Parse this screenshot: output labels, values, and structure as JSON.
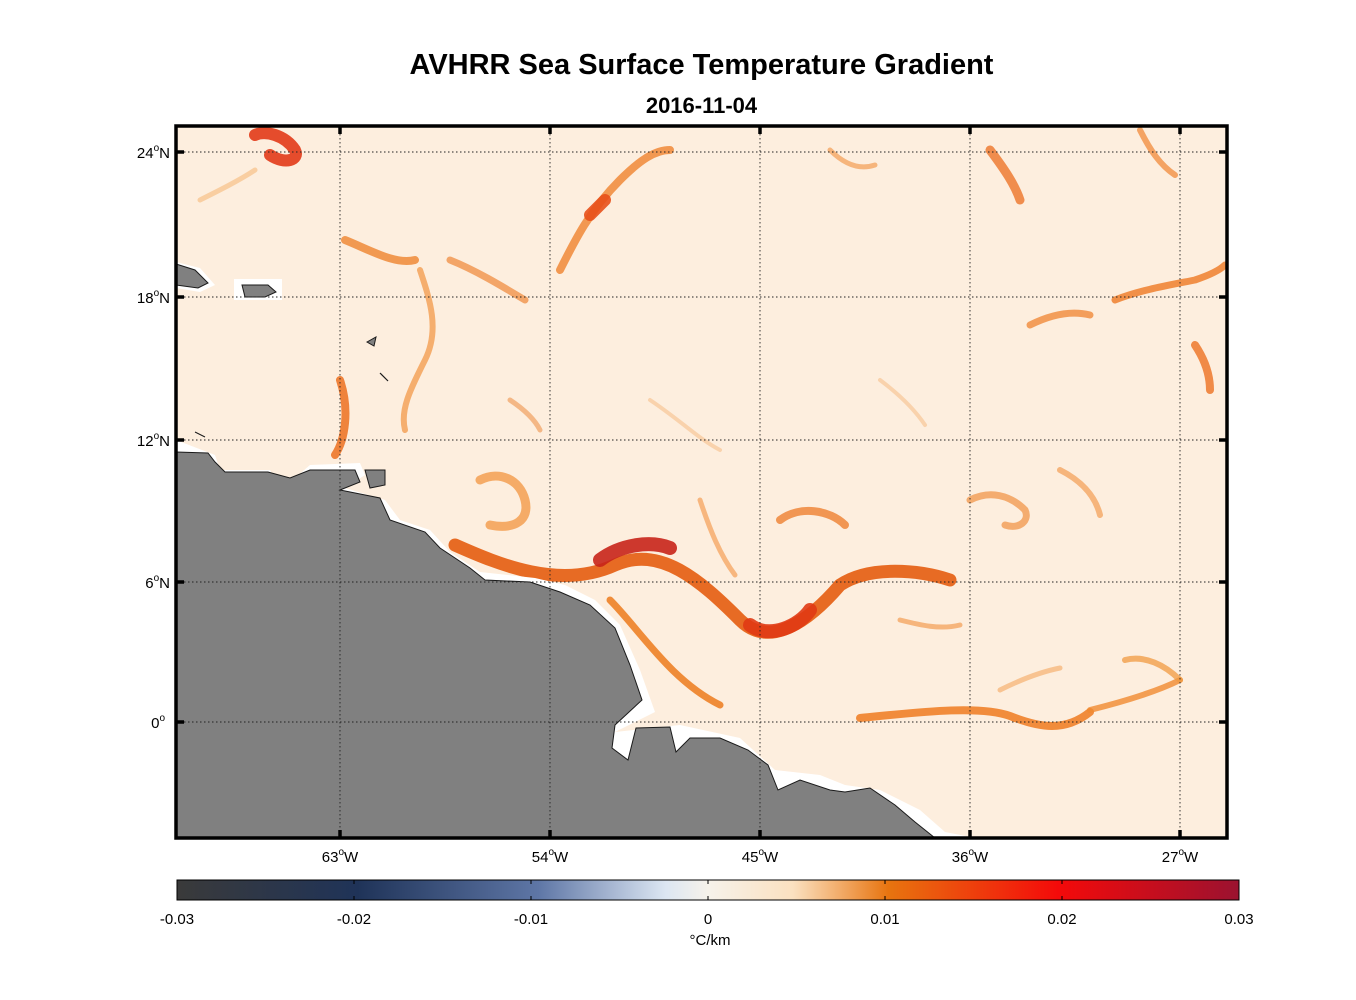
{
  "title": "AVHRR Sea Surface Temperature Gradient",
  "subtitle": "2016-11-04",
  "map": {
    "extent": {
      "lon_min": -70,
      "lon_max": -25,
      "lat_min": -5,
      "lat_max": 25
    },
    "lon_ticks": [
      {
        "value": -63,
        "deg": "63",
        "hemi": "W"
      },
      {
        "value": -54,
        "deg": "54",
        "hemi": "W"
      },
      {
        "value": -45,
        "deg": "45",
        "hemi": "W"
      },
      {
        "value": -36,
        "deg": "36",
        "hemi": "W"
      },
      {
        "value": -27,
        "deg": "27",
        "hemi": "W"
      }
    ],
    "lat_ticks": [
      {
        "value": 24,
        "deg": "24",
        "hemi": "N"
      },
      {
        "value": 18,
        "deg": "18",
        "hemi": "N"
      },
      {
        "value": 12,
        "deg": "12",
        "hemi": "N"
      },
      {
        "value": 6,
        "deg": "6",
        "hemi": "N"
      },
      {
        "value": 0,
        "deg": "0",
        "hemi": ""
      }
    ],
    "grid": "dotted",
    "land_color": "#808080",
    "ocean_background": "#fdeede"
  },
  "colorbar": {
    "min": -0.03,
    "max": 0.03,
    "tick_labels": [
      "-0.03",
      "-0.02",
      "-0.01",
      "0",
      "0.01",
      "0.02",
      "0.03"
    ],
    "units": "°C/km",
    "colors": [
      "#3a3a3a",
      "#1f3358",
      "#5e76a6",
      "#dce6f2",
      "#fdf0e0",
      "#e8740f",
      "#f40a0a",
      "#9b1230"
    ]
  }
}
